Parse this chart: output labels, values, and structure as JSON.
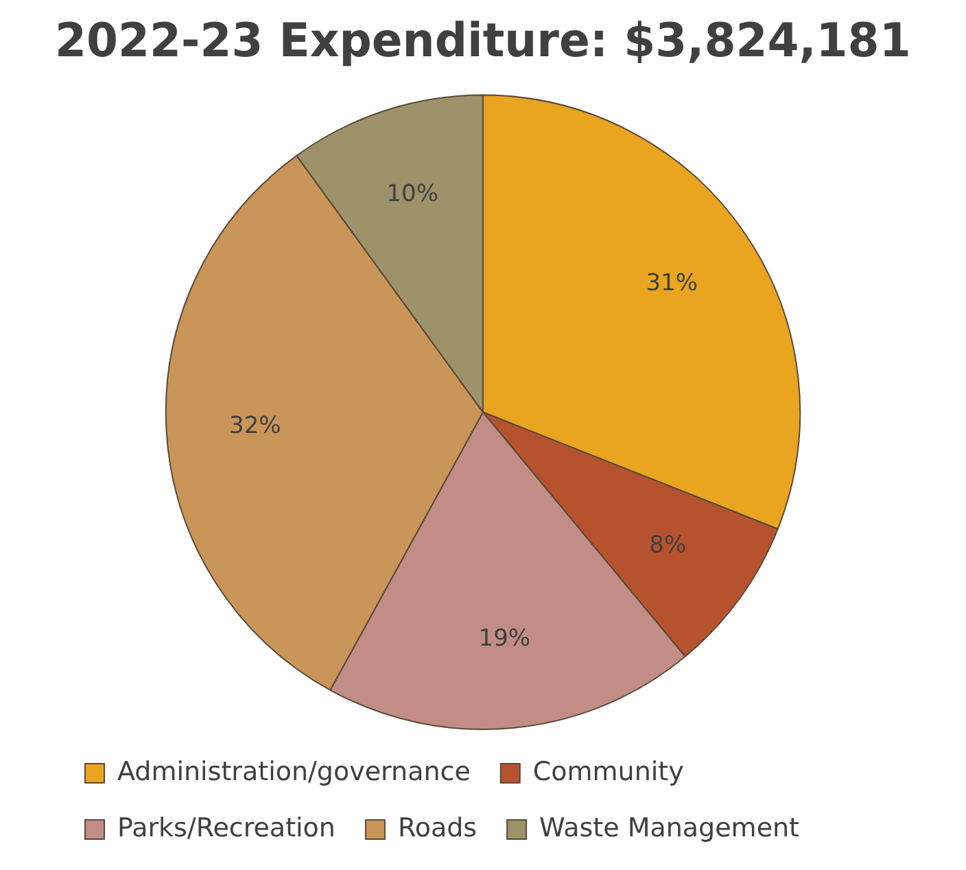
{
  "chart_data": {
    "type": "pie",
    "title": "2022-23 Expenditure: $3,824,181",
    "categories": [
      "Administration/governance",
      "Community",
      "Parks/Recreation",
      "Roads",
      "Waste Management"
    ],
    "values": [
      31,
      8,
      19,
      32,
      10
    ],
    "colors": [
      "#e9a420",
      "#b6532e",
      "#c28d86",
      "#c99558",
      "#9d9269"
    ],
    "value_labels": [
      "31%",
      "8%",
      "19%",
      "32%",
      "10%"
    ],
    "legend": "bottom"
  }
}
